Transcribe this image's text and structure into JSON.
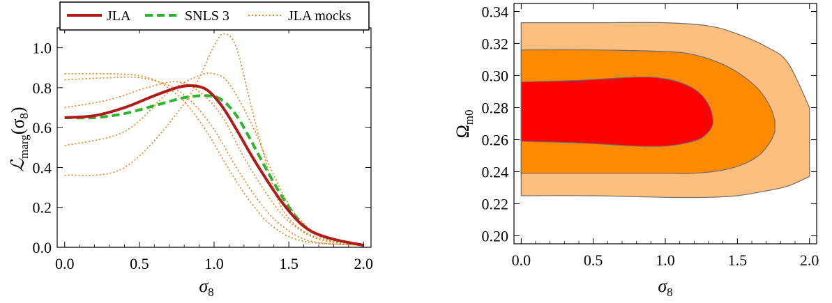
{
  "chart_data": [
    {
      "type": "line",
      "xlabel": "σ8",
      "ylabel": "ℒmarg(σ8)",
      "ylabel_parts": {
        "main": "ℒ",
        "sub": "marg",
        "rest": "(σ",
        "rest_sub": "8",
        "close": ")"
      },
      "xlabel_parts": {
        "main": "σ",
        "sub": "8"
      },
      "xlim": [
        -0.05,
        2.05
      ],
      "ylim": [
        0.0,
        1.1
      ],
      "xticks": [
        0.0,
        0.5,
        1.0,
        1.5,
        2.0
      ],
      "xtick_labels": [
        "0.0",
        "0.5",
        "1.0",
        "1.5",
        "2.0"
      ],
      "yticks": [
        0.0,
        0.2,
        0.4,
        0.6,
        0.8,
        1.0
      ],
      "ytick_labels": [
        "0.0",
        "0.2",
        "0.4",
        "0.6",
        "0.8",
        "1.0"
      ],
      "legend_position": "top",
      "series": [
        {
          "name": "JLA",
          "style": "solid",
          "color": "#b01a1a",
          "x": [
            0.0,
            0.2,
            0.4,
            0.6,
            0.75,
            0.85,
            0.95,
            1.05,
            1.15,
            1.25,
            1.35,
            1.45,
            1.55,
            1.65,
            1.8,
            2.0
          ],
          "y": [
            0.65,
            0.66,
            0.7,
            0.76,
            0.8,
            0.81,
            0.79,
            0.71,
            0.59,
            0.46,
            0.34,
            0.23,
            0.14,
            0.08,
            0.04,
            0.01
          ]
        },
        {
          "name": "SNLS 3",
          "style": "dashed",
          "color": "#2bb52b",
          "x": [
            0.0,
            0.2,
            0.4,
            0.6,
            0.8,
            0.95,
            1.05,
            1.15,
            1.25,
            1.35,
            1.45,
            1.55,
            1.65,
            1.8,
            2.0
          ],
          "y": [
            0.65,
            0.65,
            0.67,
            0.71,
            0.75,
            0.76,
            0.74,
            0.66,
            0.53,
            0.39,
            0.26,
            0.15,
            0.08,
            0.04,
            0.01
          ]
        },
        {
          "name": "JLA mocks",
          "style": "dotted",
          "color": "#e8882a",
          "x": [
            0.0,
            0.4,
            0.8,
            1.0,
            1.07,
            1.15,
            1.25,
            1.35,
            1.45,
            1.6,
            1.8,
            2.0
          ],
          "y": [
            0.36,
            0.4,
            0.72,
            1.01,
            1.07,
            1.0,
            0.7,
            0.42,
            0.2,
            0.08,
            0.03,
            0.01
          ]
        },
        {
          "name": "",
          "style": "dotted",
          "color": "#e8882a",
          "x": [
            0.0,
            0.4,
            0.7,
            0.9,
            1.0,
            1.1,
            1.25,
            1.4,
            1.55,
            1.75,
            2.0
          ],
          "y": [
            0.51,
            0.58,
            0.78,
            0.86,
            0.87,
            0.82,
            0.62,
            0.36,
            0.16,
            0.04,
            0.01
          ]
        },
        {
          "name": "",
          "style": "dotted",
          "color": "#e8882a",
          "x": [
            0.0,
            0.3,
            0.55,
            0.75,
            0.9,
            1.05,
            1.2,
            1.35,
            1.5,
            1.7,
            2.0
          ],
          "y": [
            0.7,
            0.74,
            0.8,
            0.83,
            0.78,
            0.66,
            0.45,
            0.27,
            0.13,
            0.04,
            0.01
          ]
        },
        {
          "name": "",
          "style": "dotted",
          "color": "#e8882a",
          "x": [
            0.0,
            0.3,
            0.5,
            0.7,
            0.85,
            1.0,
            1.15,
            1.3,
            1.45,
            1.65,
            2.0
          ],
          "y": [
            0.84,
            0.85,
            0.85,
            0.81,
            0.73,
            0.59,
            0.4,
            0.23,
            0.11,
            0.03,
            0.01
          ]
        },
        {
          "name": "",
          "style": "dotted",
          "color": "#e8882a",
          "x": [
            0.0,
            0.3,
            0.5,
            0.65,
            0.8,
            0.95,
            1.1,
            1.25,
            1.4,
            1.6,
            2.0
          ],
          "y": [
            0.87,
            0.87,
            0.86,
            0.82,
            0.73,
            0.58,
            0.39,
            0.22,
            0.1,
            0.03,
            0.01
          ]
        }
      ]
    },
    {
      "type": "contour",
      "xlabel": "σ8",
      "ylabel": "Ωm0",
      "xlabel_parts": {
        "main": "σ",
        "sub": "8"
      },
      "ylabel_parts": {
        "main": "Ω",
        "sub": "m0"
      },
      "xlim": [
        -0.05,
        2.05
      ],
      "ylim": [
        0.195,
        0.345
      ],
      "xticks": [
        0.0,
        0.5,
        1.0,
        1.5,
        2.0
      ],
      "xtick_labels": [
        "0.0",
        "0.5",
        "1.0",
        "1.5",
        "2.0"
      ],
      "yticks": [
        0.2,
        0.22,
        0.24,
        0.26,
        0.28,
        0.3,
        0.32,
        0.34
      ],
      "ytick_labels": [
        "0.20",
        "0.22",
        "0.24",
        "0.26",
        "0.28",
        "0.30",
        "0.32",
        "0.34"
      ],
      "regions": [
        {
          "level": "outer",
          "color": "#fdbf80",
          "upper": [
            [
              0.0,
              0.333
            ],
            [
              0.5,
              0.333
            ],
            [
              1.0,
              0.333
            ],
            [
              1.3,
              0.331
            ],
            [
              1.5,
              0.326
            ],
            [
              1.7,
              0.318
            ],
            [
              1.85,
              0.308
            ],
            [
              2.0,
              0.28
            ]
          ],
          "lower": [
            [
              0.0,
              0.225
            ],
            [
              0.5,
              0.225
            ],
            [
              1.0,
              0.224
            ],
            [
              1.3,
              0.224
            ],
            [
              1.5,
              0.225
            ],
            [
              1.7,
              0.228
            ],
            [
              1.85,
              0.231
            ],
            [
              2.0,
              0.237
            ]
          ]
        },
        {
          "level": "middle",
          "color": "#ff8a00",
          "upper": [
            [
              0.0,
              0.316
            ],
            [
              0.5,
              0.316
            ],
            [
              1.0,
              0.315
            ],
            [
              1.2,
              0.313
            ],
            [
              1.4,
              0.307
            ],
            [
              1.55,
              0.299
            ],
            [
              1.66,
              0.29
            ],
            [
              1.73,
              0.28
            ],
            [
              1.76,
              0.272
            ]
          ],
          "lower": [
            [
              0.0,
              0.239
            ],
            [
              0.5,
              0.239
            ],
            [
              1.0,
              0.239
            ],
            [
              1.2,
              0.239
            ],
            [
              1.4,
              0.241
            ],
            [
              1.55,
              0.245
            ],
            [
              1.66,
              0.251
            ],
            [
              1.73,
              0.259
            ],
            [
              1.76,
              0.265
            ]
          ]
        },
        {
          "level": "inner",
          "color": "#ff0000",
          "upper": [
            [
              0.0,
              0.296
            ],
            [
              0.4,
              0.297
            ],
            [
              0.8,
              0.299
            ],
            [
              1.0,
              0.298
            ],
            [
              1.15,
              0.294
            ],
            [
              1.25,
              0.288
            ],
            [
              1.31,
              0.28
            ],
            [
              1.33,
              0.273
            ]
          ],
          "lower": [
            [
              0.0,
              0.259
            ],
            [
              0.4,
              0.258
            ],
            [
              0.8,
              0.256
            ],
            [
              1.0,
              0.256
            ],
            [
              1.15,
              0.258
            ],
            [
              1.25,
              0.261
            ],
            [
              1.31,
              0.266
            ],
            [
              1.33,
              0.27
            ]
          ]
        }
      ]
    }
  ]
}
